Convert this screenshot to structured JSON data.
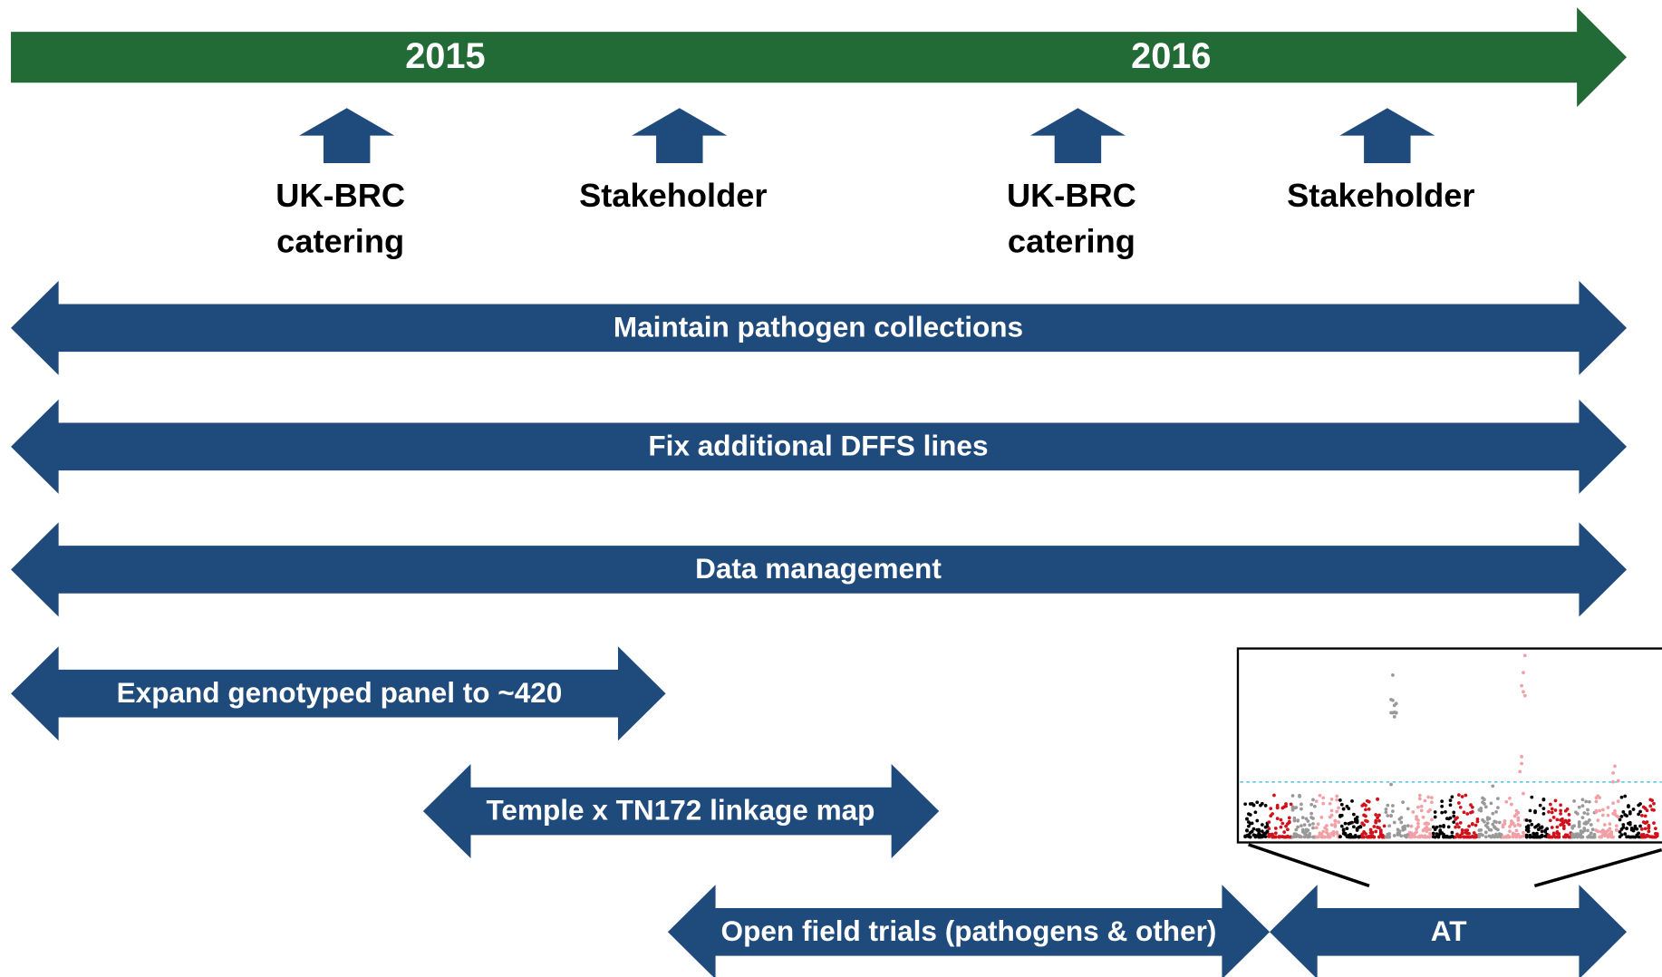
{
  "timeline": {
    "years": [
      "2015",
      "2016"
    ]
  },
  "milestones": [
    {
      "lines": [
        "UK-BRC",
        "catering"
      ]
    },
    {
      "lines": [
        "Stakeholder"
      ]
    },
    {
      "lines": [
        "UK-BRC",
        "catering"
      ]
    },
    {
      "lines": [
        "Stakeholder"
      ]
    }
  ],
  "activities": [
    {
      "label": "Maintain pathogen collections"
    },
    {
      "label": "Fix  additional DFFS lines"
    },
    {
      "label": "Data management"
    },
    {
      "label": "Expand genotyped panel to ~420"
    },
    {
      "label": "Temple x TN172 linkage map"
    },
    {
      "label": "Open field trials (pathogens & other)"
    },
    {
      "label": "AT"
    }
  ]
}
